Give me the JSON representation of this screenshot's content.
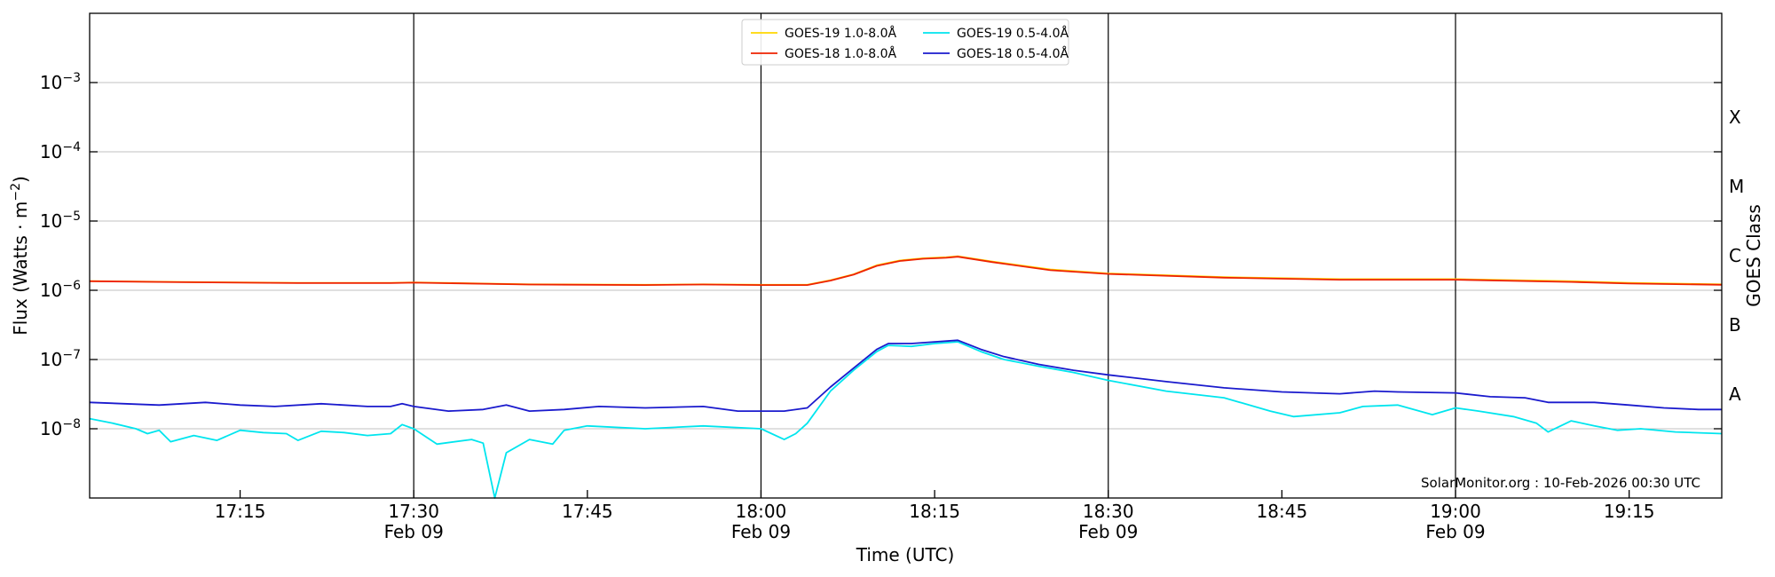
{
  "chart_data": {
    "type": "line",
    "xlabel": "Time (UTC)",
    "ylabel_main": "Flux (Watts · m",
    "ylabel_sup": "−2",
    "ylabel_close": ")",
    "y2label": "GOES Class",
    "yscale": "log",
    "ylim": [
      1e-09,
      0.01
    ],
    "xlim": [
      "17:02",
      "19:23"
    ],
    "grid": true,
    "legend_position": "top-center",
    "attribution": "SolarMonitor.org : 10-Feb-2026 00:30 UTC",
    "yticks": [
      {
        "value": 1e-08,
        "base": "10",
        "exp": "−8"
      },
      {
        "value": 1e-07,
        "base": "10",
        "exp": "−7"
      },
      {
        "value": 1e-06,
        "base": "10",
        "exp": "−6"
      },
      {
        "value": 1e-05,
        "base": "10",
        "exp": "−5"
      },
      {
        "value": 0.0001,
        "base": "10",
        "exp": "−4"
      },
      {
        "value": 0.001,
        "base": "10",
        "exp": "−3"
      }
    ],
    "xticks": [
      {
        "time": "17:15",
        "label": "17:15",
        "date": ""
      },
      {
        "time": "17:30",
        "label": "17:30",
        "date": "Feb 09"
      },
      {
        "time": "17:45",
        "label": "17:45",
        "date": ""
      },
      {
        "time": "18:00",
        "label": "18:00",
        "date": "Feb 09"
      },
      {
        "time": "18:15",
        "label": "18:15",
        "date": ""
      },
      {
        "time": "18:30",
        "label": "18:30",
        "date": "Feb 09"
      },
      {
        "time": "18:45",
        "label": "18:45",
        "date": ""
      },
      {
        "time": "19:00",
        "label": "19:00",
        "date": "Feb 09"
      },
      {
        "time": "19:15",
        "label": "19:15",
        "date": ""
      }
    ],
    "vlines": [
      "17:30",
      "18:00",
      "18:30",
      "19:00"
    ],
    "classes": [
      {
        "label": "A",
        "level": 1e-08
      },
      {
        "label": "B",
        "level": 1e-07
      },
      {
        "label": "C",
        "level": 1e-06
      },
      {
        "label": "M",
        "level": 1e-05
      },
      {
        "label": "X",
        "level": 0.0001
      }
    ],
    "series": [
      {
        "name": "GOES-19 1.0-8.0Å",
        "color": "#ffd700",
        "points": [
          [
            "17:02",
            1.36e-06
          ],
          [
            "17:10",
            1.32e-06
          ],
          [
            "17:20",
            1.28e-06
          ],
          [
            "17:28",
            1.28e-06
          ],
          [
            "17:30",
            1.3e-06
          ],
          [
            "17:40",
            1.22e-06
          ],
          [
            "17:50",
            1.2e-06
          ],
          [
            "17:55",
            1.22e-06
          ],
          [
            "18:00",
            1.2e-06
          ],
          [
            "18:04",
            1.2e-06
          ],
          [
            "18:06",
            1.4e-06
          ],
          [
            "18:08",
            1.7e-06
          ],
          [
            "18:10",
            2.3e-06
          ],
          [
            "18:12",
            2.7e-06
          ],
          [
            "18:14",
            2.9e-06
          ],
          [
            "18:16",
            3e-06
          ],
          [
            "18:17",
            3.1e-06
          ],
          [
            "18:20",
            2.6e-06
          ],
          [
            "18:25",
            2e-06
          ],
          [
            "18:30",
            1.75e-06
          ],
          [
            "18:40",
            1.55e-06
          ],
          [
            "18:50",
            1.45e-06
          ],
          [
            "19:00",
            1.45e-06
          ],
          [
            "19:10",
            1.35e-06
          ],
          [
            "19:15",
            1.28e-06
          ],
          [
            "19:23",
            1.22e-06
          ]
        ]
      },
      {
        "name": "GOES-18 1.0-8.0Å",
        "color": "#ee2200",
        "points": [
          [
            "17:02",
            1.35e-06
          ],
          [
            "17:10",
            1.31e-06
          ],
          [
            "17:20",
            1.27e-06
          ],
          [
            "17:28",
            1.27e-06
          ],
          [
            "17:30",
            1.29e-06
          ],
          [
            "17:40",
            1.21e-06
          ],
          [
            "17:50",
            1.19e-06
          ],
          [
            "17:55",
            1.21e-06
          ],
          [
            "18:00",
            1.19e-06
          ],
          [
            "18:04",
            1.19e-06
          ],
          [
            "18:06",
            1.38e-06
          ],
          [
            "18:08",
            1.68e-06
          ],
          [
            "18:10",
            2.25e-06
          ],
          [
            "18:12",
            2.65e-06
          ],
          [
            "18:14",
            2.85e-06
          ],
          [
            "18:16",
            2.95e-06
          ],
          [
            "18:17",
            3.05e-06
          ],
          [
            "18:20",
            2.55e-06
          ],
          [
            "18:25",
            1.95e-06
          ],
          [
            "18:30",
            1.72e-06
          ],
          [
            "18:40",
            1.52e-06
          ],
          [
            "18:50",
            1.42e-06
          ],
          [
            "19:00",
            1.42e-06
          ],
          [
            "19:10",
            1.32e-06
          ],
          [
            "19:15",
            1.25e-06
          ],
          [
            "19:23",
            1.2e-06
          ]
        ]
      },
      {
        "name": "GOES-19 0.5-4.0Å",
        "color": "#00e5ee",
        "points": [
          [
            "17:02",
            1.4e-08
          ],
          [
            "17:04",
            1.2e-08
          ],
          [
            "17:06",
            1e-08
          ],
          [
            "17:07",
            8.5e-09
          ],
          [
            "17:08",
            9.5e-09
          ],
          [
            "17:09",
            6.5e-09
          ],
          [
            "17:11",
            8e-09
          ],
          [
            "17:13",
            6.8e-09
          ],
          [
            "17:15",
            9.5e-09
          ],
          [
            "17:17",
            8.8e-09
          ],
          [
            "17:19",
            8.5e-09
          ],
          [
            "17:20",
            6.8e-09
          ],
          [
            "17:22",
            9.2e-09
          ],
          [
            "17:24",
            8.8e-09
          ],
          [
            "17:26",
            8e-09
          ],
          [
            "17:28",
            8.5e-09
          ],
          [
            "17:29",
            1.15e-08
          ],
          [
            "17:30",
            1e-08
          ],
          [
            "17:32",
            6e-09
          ],
          [
            "17:35",
            7e-09
          ],
          [
            "17:36",
            6.2e-09
          ],
          [
            "17:37",
            1e-09
          ],
          [
            "17:38",
            4.5e-09
          ],
          [
            "17:40",
            7e-09
          ],
          [
            "17:42",
            6e-09
          ],
          [
            "17:43",
            9.5e-09
          ],
          [
            "17:45",
            1.1e-08
          ],
          [
            "17:50",
            1e-08
          ],
          [
            "17:55",
            1.1e-08
          ],
          [
            "18:00",
            1e-08
          ],
          [
            "18:02",
            7e-09
          ],
          [
            "18:03",
            8.5e-09
          ],
          [
            "18:04",
            1.2e-08
          ],
          [
            "18:06",
            3.5e-08
          ],
          [
            "18:08",
            7e-08
          ],
          [
            "18:10",
            1.3e-07
          ],
          [
            "18:11",
            1.6e-07
          ],
          [
            "18:13",
            1.55e-07
          ],
          [
            "18:15",
            1.7e-07
          ],
          [
            "18:17",
            1.8e-07
          ],
          [
            "18:19",
            1.3e-07
          ],
          [
            "18:21",
            1e-07
          ],
          [
            "18:24",
            8e-08
          ],
          [
            "18:27",
            6.5e-08
          ],
          [
            "18:30",
            5e-08
          ],
          [
            "18:35",
            3.5e-08
          ],
          [
            "18:40",
            2.8e-08
          ],
          [
            "18:44",
            1.8e-08
          ],
          [
            "18:46",
            1.5e-08
          ],
          [
            "18:50",
            1.7e-08
          ],
          [
            "18:52",
            2.1e-08
          ],
          [
            "18:55",
            2.2e-08
          ],
          [
            "18:58",
            1.6e-08
          ],
          [
            "19:00",
            2e-08
          ],
          [
            "19:02",
            1.8e-08
          ],
          [
            "19:05",
            1.5e-08
          ],
          [
            "19:07",
            1.2e-08
          ],
          [
            "19:08",
            9e-09
          ],
          [
            "19:10",
            1.3e-08
          ],
          [
            "19:12",
            1.1e-08
          ],
          [
            "19:14",
            9.5e-09
          ],
          [
            "19:16",
            1e-08
          ],
          [
            "19:19",
            9e-09
          ],
          [
            "19:23",
            8.5e-09
          ]
        ]
      },
      {
        "name": "GOES-18 0.5-4.0Å",
        "color": "#1a1acd",
        "points": [
          [
            "17:02",
            2.4e-08
          ],
          [
            "17:05",
            2.3e-08
          ],
          [
            "17:08",
            2.2e-08
          ],
          [
            "17:12",
            2.4e-08
          ],
          [
            "17:15",
            2.2e-08
          ],
          [
            "17:18",
            2.1e-08
          ],
          [
            "17:22",
            2.3e-08
          ],
          [
            "17:26",
            2.1e-08
          ],
          [
            "17:28",
            2.1e-08
          ],
          [
            "17:29",
            2.3e-08
          ],
          [
            "17:30",
            2.1e-08
          ],
          [
            "17:33",
            1.8e-08
          ],
          [
            "17:36",
            1.9e-08
          ],
          [
            "17:38",
            2.2e-08
          ],
          [
            "17:40",
            1.8e-08
          ],
          [
            "17:43",
            1.9e-08
          ],
          [
            "17:46",
            2.1e-08
          ],
          [
            "17:50",
            2e-08
          ],
          [
            "17:55",
            2.1e-08
          ],
          [
            "17:58",
            1.8e-08
          ],
          [
            "18:00",
            1.8e-08
          ],
          [
            "18:02",
            1.8e-08
          ],
          [
            "18:04",
            2e-08
          ],
          [
            "18:06",
            4e-08
          ],
          [
            "18:08",
            7.5e-08
          ],
          [
            "18:10",
            1.4e-07
          ],
          [
            "18:11",
            1.7e-07
          ],
          [
            "18:13",
            1.7e-07
          ],
          [
            "18:15",
            1.8e-07
          ],
          [
            "18:17",
            1.9e-07
          ],
          [
            "18:19",
            1.4e-07
          ],
          [
            "18:21",
            1.1e-07
          ],
          [
            "18:24",
            8.5e-08
          ],
          [
            "18:27",
            7e-08
          ],
          [
            "18:30",
            6e-08
          ],
          [
            "18:35",
            4.8e-08
          ],
          [
            "18:40",
            3.9e-08
          ],
          [
            "18:45",
            3.4e-08
          ],
          [
            "18:50",
            3.2e-08
          ],
          [
            "18:53",
            3.5e-08
          ],
          [
            "18:55",
            3.4e-08
          ],
          [
            "19:00",
            3.3e-08
          ],
          [
            "19:03",
            2.9e-08
          ],
          [
            "19:06",
            2.8e-08
          ],
          [
            "19:08",
            2.4e-08
          ],
          [
            "19:12",
            2.4e-08
          ],
          [
            "19:15",
            2.2e-08
          ],
          [
            "19:18",
            2e-08
          ],
          [
            "19:21",
            1.9e-08
          ],
          [
            "19:23",
            1.9e-08
          ]
        ]
      }
    ]
  }
}
